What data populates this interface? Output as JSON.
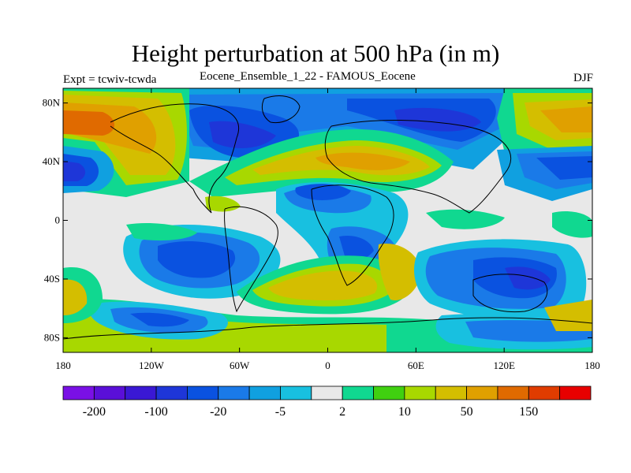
{
  "title": "Height perturbation at 500 hPa (in m)",
  "subtitle_left": "Expt = tcwiv-tcwda",
  "subtitle_center": "Eocene_Ensemble_1_22 - FAMOUS_Eocene",
  "subtitle_right": "DJF",
  "y_ticks": [
    {
      "label": "80N",
      "lat": 80
    },
    {
      "label": "40N",
      "lat": 40
    },
    {
      "label": "0",
      "lat": 0
    },
    {
      "label": "40S",
      "lat": -40
    },
    {
      "label": "80S",
      "lat": -80
    }
  ],
  "x_ticks": [
    {
      "label": "180",
      "lon": -180
    },
    {
      "label": "120W",
      "lon": -120
    },
    {
      "label": "60W",
      "lon": -60
    },
    {
      "label": "0",
      "lon": 0
    },
    {
      "label": "60E",
      "lon": 60
    },
    {
      "label": "120E",
      "lon": 120
    },
    {
      "label": "180",
      "lon": 180
    }
  ],
  "colorbar": {
    "colors": [
      "#7a10e6",
      "#5a0fd8",
      "#3a18d4",
      "#1e36d8",
      "#0a52e0",
      "#1a7ae8",
      "#10a0e0",
      "#18c0e0",
      "#e8e8e8",
      "#10d890",
      "#40d010",
      "#a8d800",
      "#d4be00",
      "#e0a000",
      "#e06a00",
      "#e03c00",
      "#e80000"
    ],
    "labels": [
      {
        "text": "-200",
        "index": 1
      },
      {
        "text": "-100",
        "index": 3
      },
      {
        "text": "-20",
        "index": 5
      },
      {
        "text": "-5",
        "index": 7
      },
      {
        "text": "2",
        "index": 9
      },
      {
        "text": "10",
        "index": 11
      },
      {
        "text": "50",
        "index": 13
      },
      {
        "text": "150",
        "index": 15
      }
    ]
  },
  "field_colors": {
    "background": "#e8e8e8",
    "green": "#10d890",
    "lime": "#a8d800",
    "yellow": "#d4be00",
    "orange": "#e0a000",
    "darkorange": "#e06a00",
    "cyan": "#18c0e0",
    "lightblue": "#10a0e0",
    "blue": "#1a7ae8",
    "medblue": "#0a52e0",
    "darkblue": "#1e36d8"
  }
}
